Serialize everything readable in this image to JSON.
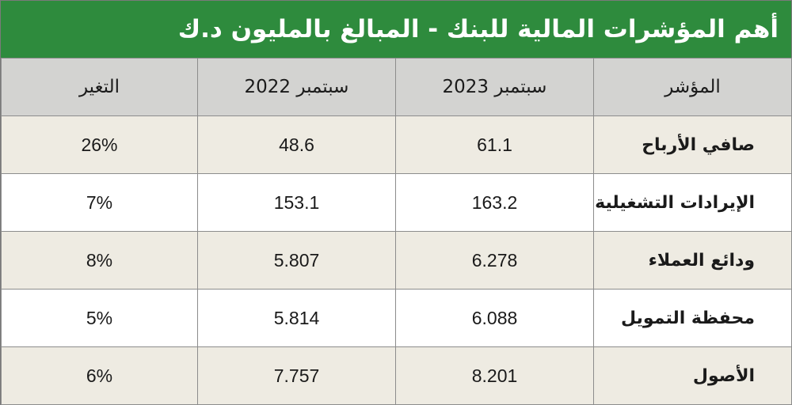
{
  "title": "أهم المؤشرات المالية للبنك - المبالغ بالمليون د.ك",
  "colors": {
    "header_green": "#2e8b3d",
    "header_row_gray": "#d3d3d1",
    "shaded_row": "#eeebe2"
  },
  "table": {
    "headers": [
      "المؤشر",
      "سبتمبر 2023",
      "سبتمبر 2022",
      "التغير"
    ],
    "rows": [
      {
        "indicator": "صافي الأرباح",
        "sep_2023": "61.1",
        "sep_2022": "48.6",
        "change": "26%"
      },
      {
        "indicator": "الإيرادات التشغيلية",
        "sep_2023": "163.2",
        "sep_2022": "153.1",
        "change": "7%"
      },
      {
        "indicator": "ودائع العملاء",
        "sep_2023": "6.278",
        "sep_2022": "5.807",
        "change": "8%"
      },
      {
        "indicator": "محفظة التمويل",
        "sep_2023": "6.088",
        "sep_2022": "5.814",
        "change": "5%"
      },
      {
        "indicator": "الأصول",
        "sep_2023": "8.201",
        "sep_2022": "7.757",
        "change": "6%"
      }
    ]
  }
}
